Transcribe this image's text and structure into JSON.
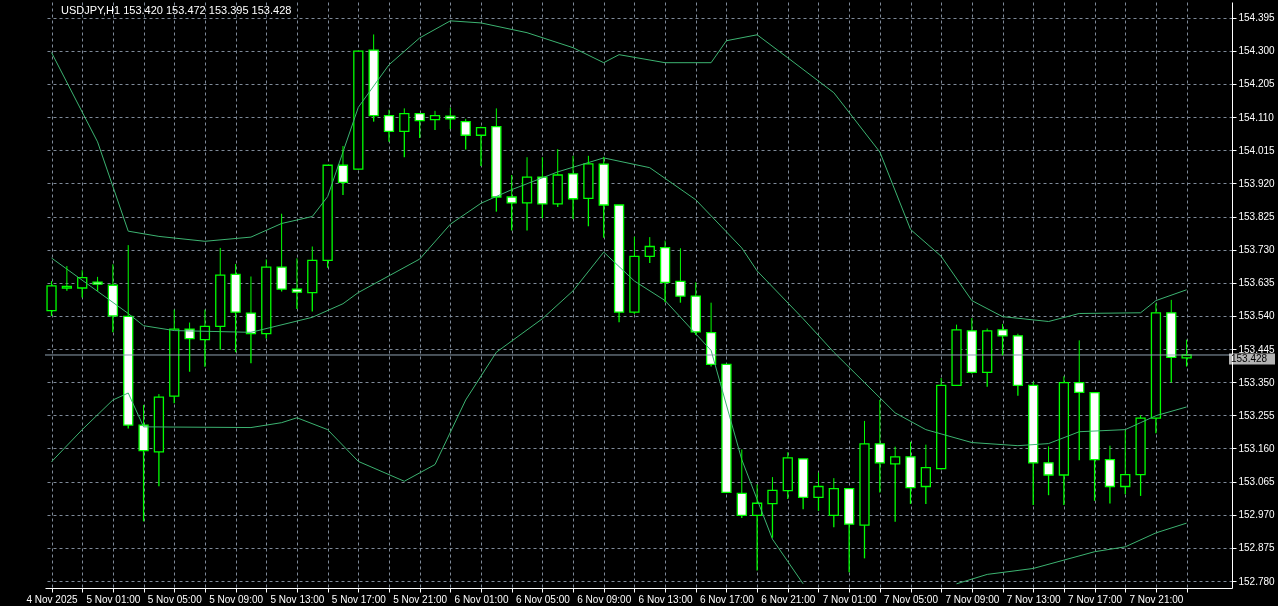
{
  "chart_data": {
    "type": "candlestick",
    "title": "USDJPY,H1  153.420 153.472 153.395 153.428",
    "x": [
      "2025-11-04T21:00",
      "2025-11-04T22:00",
      "2025-11-04T23:00",
      "2025-11-05T00:00",
      "2025-11-05T01:00",
      "2025-11-05T02:00",
      "2025-11-05T03:00",
      "2025-11-05T04:00",
      "2025-11-05T05:00",
      "2025-11-05T06:00",
      "2025-11-05T07:00",
      "2025-11-05T08:00",
      "2025-11-05T09:00",
      "2025-11-05T10:00",
      "2025-11-05T11:00",
      "2025-11-05T12:00",
      "2025-11-05T13:00",
      "2025-11-05T14:00",
      "2025-11-05T15:00",
      "2025-11-05T16:00",
      "2025-11-05T17:00",
      "2025-11-05T18:00",
      "2025-11-05T19:00",
      "2025-11-05T20:00",
      "2025-11-05T21:00",
      "2025-11-05T22:00",
      "2025-11-05T23:00",
      "2025-11-06T00:00",
      "2025-11-06T01:00",
      "2025-11-06T02:00",
      "2025-11-06T03:00",
      "2025-11-06T04:00",
      "2025-11-06T05:00",
      "2025-11-06T06:00",
      "2025-11-06T07:00",
      "2025-11-06T08:00",
      "2025-11-06T09:00",
      "2025-11-06T10:00",
      "2025-11-06T11:00",
      "2025-11-06T12:00",
      "2025-11-06T13:00",
      "2025-11-06T14:00",
      "2025-11-06T15:00",
      "2025-11-06T16:00",
      "2025-11-06T17:00",
      "2025-11-06T18:00",
      "2025-11-06T19:00",
      "2025-11-06T20:00",
      "2025-11-06T21:00",
      "2025-11-06T22:00",
      "2025-11-06T23:00",
      "2025-11-07T00:00",
      "2025-11-07T01:00",
      "2025-11-07T02:00",
      "2025-11-07T03:00",
      "2025-11-07T04:00",
      "2025-11-07T05:00",
      "2025-11-07T06:00",
      "2025-11-07T07:00",
      "2025-11-07T08:00",
      "2025-11-07T09:00",
      "2025-11-07T10:00",
      "2025-11-07T11:00",
      "2025-11-07T12:00",
      "2025-11-07T13:00",
      "2025-11-07T14:00",
      "2025-11-07T15:00",
      "2025-11-07T16:00",
      "2025-11-07T17:00",
      "2025-11-07T18:00",
      "2025-11-07T19:00",
      "2025-11-07T20:00",
      "2025-11-07T21:00",
      "2025-11-07T22:00",
      "2025-11-07T23:00"
    ],
    "ohlc": [
      [
        153.555,
        153.64,
        153.54,
        153.626
      ],
      [
        153.62,
        153.683,
        153.612,
        153.625
      ],
      [
        153.62,
        153.671,
        153.593,
        153.65
      ],
      [
        153.637,
        153.652,
        153.612,
        153.631
      ],
      [
        153.628,
        153.688,
        153.493,
        153.54
      ],
      [
        153.539,
        153.743,
        153.217,
        153.227
      ],
      [
        153.227,
        153.285,
        152.951,
        153.154
      ],
      [
        153.15,
        153.316,
        153.052,
        153.307
      ],
      [
        153.31,
        153.558,
        153.29,
        153.502
      ],
      [
        153.502,
        153.521,
        153.38,
        153.475
      ],
      [
        153.472,
        153.558,
        153.394,
        153.51
      ],
      [
        153.51,
        153.735,
        153.443,
        153.657
      ],
      [
        153.659,
        153.689,
        153.436,
        153.551
      ],
      [
        153.548,
        153.653,
        153.404,
        153.489
      ],
      [
        153.489,
        153.702,
        153.475,
        153.68
      ],
      [
        153.68,
        153.833,
        153.61,
        153.617
      ],
      [
        153.617,
        153.705,
        153.56,
        153.608
      ],
      [
        153.607,
        153.739,
        153.553,
        153.699
      ],
      [
        153.699,
        153.972,
        153.678,
        153.972
      ],
      [
        153.972,
        154.027,
        153.887,
        153.923
      ],
      [
        153.961,
        154.3,
        153.96,
        154.299
      ],
      [
        154.302,
        154.347,
        154.097,
        154.114
      ],
      [
        154.114,
        154.131,
        154.039,
        154.069
      ],
      [
        154.069,
        154.135,
        153.995,
        154.12
      ],
      [
        154.12,
        154.12,
        154.05,
        154.1
      ],
      [
        154.103,
        154.128,
        154.073,
        154.114
      ],
      [
        154.113,
        154.137,
        154.076,
        154.105
      ],
      [
        154.097,
        154.105,
        154.017,
        154.058
      ],
      [
        154.058,
        154.083,
        153.97,
        154.08
      ],
      [
        154.083,
        154.135,
        153.839,
        153.881
      ],
      [
        153.881,
        153.944,
        153.785,
        153.864
      ],
      [
        153.864,
        153.995,
        153.785,
        153.938
      ],
      [
        153.938,
        153.995,
        153.82,
        153.861
      ],
      [
        153.861,
        154.018,
        153.852,
        153.944
      ],
      [
        153.947,
        153.999,
        153.818,
        153.876
      ],
      [
        153.877,
        153.999,
        153.797,
        153.976
      ],
      [
        153.975,
        153.996,
        153.764,
        153.858
      ],
      [
        153.858,
        153.858,
        153.522,
        153.551
      ],
      [
        153.551,
        153.767,
        153.546,
        153.711
      ],
      [
        153.711,
        153.766,
        153.692,
        153.739
      ],
      [
        153.736,
        153.756,
        153.579,
        153.636
      ],
      [
        153.639,
        153.734,
        153.578,
        153.597
      ],
      [
        153.597,
        153.636,
        153.485,
        153.494
      ],
      [
        153.492,
        153.578,
        153.395,
        153.401
      ],
      [
        153.401,
        153.401,
        153.034,
        153.034
      ],
      [
        153.031,
        153.157,
        152.961,
        152.968
      ],
      [
        152.968,
        153.057,
        152.81,
        153.003
      ],
      [
        153.002,
        153.078,
        152.904,
        153.04
      ],
      [
        153.039,
        153.149,
        153.015,
        153.133
      ],
      [
        153.13,
        153.13,
        152.986,
        153.02
      ],
      [
        153.02,
        153.091,
        152.981,
        153.051
      ],
      [
        152.968,
        153.075,
        152.934,
        153.045
      ],
      [
        153.045,
        153.045,
        152.805,
        152.943
      ],
      [
        152.94,
        153.239,
        152.845,
        153.173
      ],
      [
        153.173,
        153.299,
        153.034,
        153.119
      ],
      [
        153.116,
        153.165,
        152.95,
        153.136
      ],
      [
        153.136,
        153.179,
        153.001,
        153.048
      ],
      [
        153.051,
        153.171,
        153.001,
        153.105
      ],
      [
        153.102,
        153.362,
        153.1,
        153.341
      ],
      [
        153.341,
        153.515,
        153.341,
        153.5
      ],
      [
        153.497,
        153.534,
        153.375,
        153.378
      ],
      [
        153.378,
        153.504,
        153.337,
        153.497
      ],
      [
        153.5,
        153.517,
        153.427,
        153.483
      ],
      [
        153.483,
        153.489,
        153.311,
        153.341
      ],
      [
        153.341,
        153.351,
        152.998,
        153.119
      ],
      [
        153.119,
        153.166,
        153.026,
        153.084
      ],
      [
        153.084,
        153.367,
        152.998,
        153.349
      ],
      [
        153.349,
        153.47,
        153.126,
        153.321
      ],
      [
        153.32,
        153.32,
        153.01,
        153.128
      ],
      [
        153.128,
        153.168,
        153.002,
        153.051
      ],
      [
        153.051,
        153.212,
        153.029,
        153.085
      ],
      [
        153.085,
        153.255,
        153.024,
        153.247
      ],
      [
        153.247,
        153.576,
        153.204,
        153.549
      ],
      [
        153.549,
        153.586,
        153.349,
        153.421
      ],
      [
        153.42,
        153.472,
        153.395,
        153.428
      ]
    ],
    "series": [
      {
        "type": "line",
        "color": "#3cb371",
        "x": [
          "2025-11-04T21:00",
          "2025-11-05T00:00",
          "2025-11-05T02:00",
          "2025-11-05T04:00",
          "2025-11-05T07:00",
          "2025-11-05T10:00",
          "2025-11-05T12:00",
          "2025-11-05T14:00",
          "2025-11-05T15:00",
          "2025-11-05T17:00",
          "2025-11-05T19:00",
          "2025-11-05T21:00",
          "2025-11-05T23:00",
          "2025-11-06T01:00",
          "2025-11-06T04:00",
          "2025-11-06T07:00",
          "2025-11-06T09:00",
          "2025-11-06T10:00",
          "2025-11-06T13:00",
          "2025-11-06T16:00",
          "2025-11-06T17:00",
          "2025-11-06T19:00",
          "2025-11-06T21:00",
          "2025-11-07T00:00",
          "2025-11-07T03:00",
          "2025-11-07T05:00",
          "2025-11-07T07:00",
          "2025-11-07T09:00",
          "2025-11-07T11:00",
          "2025-11-07T14:00",
          "2025-11-07T16:00",
          "2025-11-07T20:00",
          "2025-11-07T21:00",
          "2025-11-07T23:00"
        ],
        "values": [
          154.295,
          154.039,
          153.783,
          153.768,
          153.754,
          153.766,
          153.805,
          153.825,
          153.882,
          154.138,
          154.26,
          154.337,
          154.386,
          154.38,
          154.352,
          154.309,
          154.266,
          154.289,
          154.266,
          154.266,
          154.329,
          154.346,
          154.28,
          154.18,
          154.01,
          153.788,
          153.711,
          153.584,
          153.538,
          153.524,
          153.547,
          153.549,
          153.584,
          153.615
        ]
      },
      {
        "type": "line",
        "color": "#3cb371",
        "x": [
          "2025-11-04T21:00",
          "2025-11-05T02:00",
          "2025-11-05T03:00",
          "2025-11-05T05:00",
          "2025-11-05T10:00",
          "2025-11-05T14:00",
          "2025-11-05T16:00",
          "2025-11-05T17:00",
          "2025-11-05T19:00",
          "2025-11-05T21:00",
          "2025-11-05T23:00",
          "2025-11-06T01:00",
          "2025-11-06T03:00",
          "2025-11-06T06:00",
          "2025-11-06T09:00",
          "2025-11-06T12:00",
          "2025-11-06T15:00",
          "2025-11-06T18:00",
          "2025-11-06T19:00",
          "2025-11-06T22:00",
          "2025-11-07T00:00",
          "2025-11-07T04:00",
          "2025-11-07T06:00",
          "2025-11-07T09:00",
          "2025-11-07T12:00",
          "2025-11-07T14:00",
          "2025-11-07T16:00",
          "2025-11-07T19:00",
          "2025-11-07T20:00",
          "2025-11-07T21:00",
          "2025-11-07T23:00"
        ],
        "values": [
          153.706,
          153.547,
          153.512,
          153.498,
          153.493,
          153.536,
          153.575,
          153.607,
          153.655,
          153.703,
          153.803,
          153.863,
          153.902,
          153.953,
          153.993,
          153.965,
          153.873,
          153.735,
          153.669,
          153.532,
          153.436,
          153.262,
          153.214,
          153.177,
          153.168,
          153.174,
          153.208,
          153.214,
          153.234,
          153.254,
          153.279
        ]
      },
      {
        "type": "line",
        "color": "#3cb371",
        "x": [
          "2025-11-04T21:00",
          "2025-11-04T23:00",
          "2025-11-05T01:00",
          "2025-11-05T02:00",
          "2025-11-05T03:00",
          "2025-11-05T10:00",
          "2025-11-05T12:00",
          "2025-11-05T13:00",
          "2025-11-05T15:00",
          "2025-11-05T17:00",
          "2025-11-05T20:00",
          "2025-11-05T22:00",
          "2025-11-06T00:00",
          "2025-11-06T02:00",
          "2025-11-06T05:00",
          "2025-11-06T07:00",
          "2025-11-06T09:00",
          "2025-11-06T11:00",
          "2025-11-06T13:00",
          "2025-11-06T16:00",
          "2025-11-06T18:00",
          "2025-11-06T20:00",
          "2025-11-06T22:00",
          "2025-11-07T03:00",
          "2025-11-07T08:00",
          "2025-11-07T10:00",
          "2025-11-07T13:00",
          "2025-11-07T17:00",
          "2025-11-07T19:00",
          "2025-11-07T21:00",
          "2025-11-07T23:00"
        ],
        "values": [
          153.122,
          153.214,
          153.299,
          153.319,
          153.222,
          153.22,
          153.234,
          153.248,
          153.214,
          153.123,
          153.066,
          153.114,
          153.299,
          153.436,
          153.532,
          153.612,
          153.723,
          153.64,
          153.584,
          153.441,
          153.128,
          152.9,
          152.772,
          null,
          152.772,
          152.799,
          152.816,
          152.864,
          152.878,
          152.918,
          152.946
        ]
      }
    ],
    "ref_lines": [
      {
        "axis": "y",
        "value": 153.428,
        "label": "153.428",
        "color": "#8fa0b0"
      }
    ],
    "xlim": [
      "2025-11-04T20:54",
      "2025-11-08T01:38"
    ],
    "xticks": [
      {
        "value": "2025-11-04T21:00",
        "label": "4 Nov 2025"
      },
      {
        "value": "2025-11-04T23:00",
        "label": null
      },
      {
        "value": "2025-11-05T01:00",
        "label": "5 Nov 01:00"
      },
      {
        "value": "2025-11-05T03:00",
        "label": null
      },
      {
        "value": "2025-11-05T05:00",
        "label": "5 Nov 05:00"
      },
      {
        "value": "2025-11-05T07:00",
        "label": null
      },
      {
        "value": "2025-11-05T09:00",
        "label": "5 Nov 09:00"
      },
      {
        "value": "2025-11-05T11:00",
        "label": null
      },
      {
        "value": "2025-11-05T13:00",
        "label": "5 Nov 13:00"
      },
      {
        "value": "2025-11-05T15:00",
        "label": null
      },
      {
        "value": "2025-11-05T17:00",
        "label": "5 Nov 17:00"
      },
      {
        "value": "2025-11-05T19:00",
        "label": null
      },
      {
        "value": "2025-11-05T21:00",
        "label": "5 Nov 21:00"
      },
      {
        "value": "2025-11-05T23:00",
        "label": null
      },
      {
        "value": "2025-11-06T01:00",
        "label": "6 Nov 01:00"
      },
      {
        "value": "2025-11-06T03:00",
        "label": null
      },
      {
        "value": "2025-11-06T05:00",
        "label": "6 Nov 05:00"
      },
      {
        "value": "2025-11-06T07:00",
        "label": null
      },
      {
        "value": "2025-11-06T09:00",
        "label": "6 Nov 09:00"
      },
      {
        "value": "2025-11-06T11:00",
        "label": null
      },
      {
        "value": "2025-11-06T13:00",
        "label": "6 Nov 13:00"
      },
      {
        "value": "2025-11-06T15:00",
        "label": null
      },
      {
        "value": "2025-11-06T17:00",
        "label": "6 Nov 17:00"
      },
      {
        "value": "2025-11-06T19:00",
        "label": null
      },
      {
        "value": "2025-11-06T21:00",
        "label": "6 Nov 21:00"
      },
      {
        "value": "2025-11-06T23:00",
        "label": null
      },
      {
        "value": "2025-11-07T01:00",
        "label": "7 Nov 01:00"
      },
      {
        "value": "2025-11-07T03:00",
        "label": null
      },
      {
        "value": "2025-11-07T05:00",
        "label": "7 Nov 05:00"
      },
      {
        "value": "2025-11-07T07:00",
        "label": null
      },
      {
        "value": "2025-11-07T09:00",
        "label": "7 Nov 09:00"
      },
      {
        "value": "2025-11-07T11:00",
        "label": null
      },
      {
        "value": "2025-11-07T13:00",
        "label": "7 Nov 13:00"
      },
      {
        "value": "2025-11-07T15:00",
        "label": null
      },
      {
        "value": "2025-11-07T17:00",
        "label": "7 Nov 17:00"
      },
      {
        "value": "2025-11-07T19:00",
        "label": null
      },
      {
        "value": "2025-11-07T21:00",
        "label": "7 Nov 21:00"
      },
      {
        "value": "2025-11-07T23:00",
        "label": null
      }
    ],
    "ylim": [
      152.76,
      154.44
    ],
    "yticks": [
      {
        "value": 152.78,
        "label": "152.780"
      },
      {
        "value": 152.875,
        "label": "152.875"
      },
      {
        "value": 152.97,
        "label": "152.970"
      },
      {
        "value": 153.065,
        "label": "153.065"
      },
      {
        "value": 153.16,
        "label": "153.160"
      },
      {
        "value": 153.255,
        "label": "153.255"
      },
      {
        "value": 153.35,
        "label": "153.350"
      },
      {
        "value": 153.445,
        "label": "153.445"
      },
      {
        "value": 153.54,
        "label": "153.540"
      },
      {
        "value": 153.635,
        "label": "153.635"
      },
      {
        "value": 153.73,
        "label": "153.730"
      },
      {
        "value": 153.825,
        "label": "153.825"
      },
      {
        "value": 153.92,
        "label": "153.920"
      },
      {
        "value": 154.015,
        "label": "154.015"
      },
      {
        "value": 154.11,
        "label": "154.110"
      },
      {
        "value": 154.205,
        "label": "154.205"
      },
      {
        "value": 154.3,
        "label": "154.300"
      },
      {
        "value": 154.395,
        "label": "154.395"
      }
    ],
    "grid": true
  }
}
